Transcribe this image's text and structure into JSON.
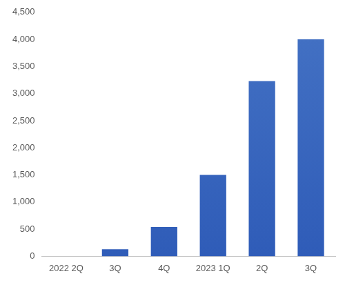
{
  "chart_data": {
    "type": "bar",
    "categories": [
      "2022 2Q",
      "3Q",
      "4Q",
      "2023 1Q",
      "2Q",
      "3Q"
    ],
    "values": [
      0,
      130,
      540,
      1500,
      3230,
      4000
    ],
    "color": "#4472c4",
    "ylim": [
      0,
      4500
    ],
    "yticks": [
      0,
      500,
      {
        "value": 1000,
        "label": "1,000"
      },
      {
        "value": 1500,
        "label": "1,500"
      },
      {
        "value": 2000,
        "label": "2,000"
      },
      {
        "value": 2500,
        "label": "2,500"
      },
      {
        "value": 3000,
        "label": "3,000"
      },
      {
        "value": 3500,
        "label": "3,500"
      },
      {
        "value": 4000,
        "label": "4,000"
      },
      {
        "value": 4500,
        "label": "4,500"
      }
    ],
    "grid": false
  }
}
